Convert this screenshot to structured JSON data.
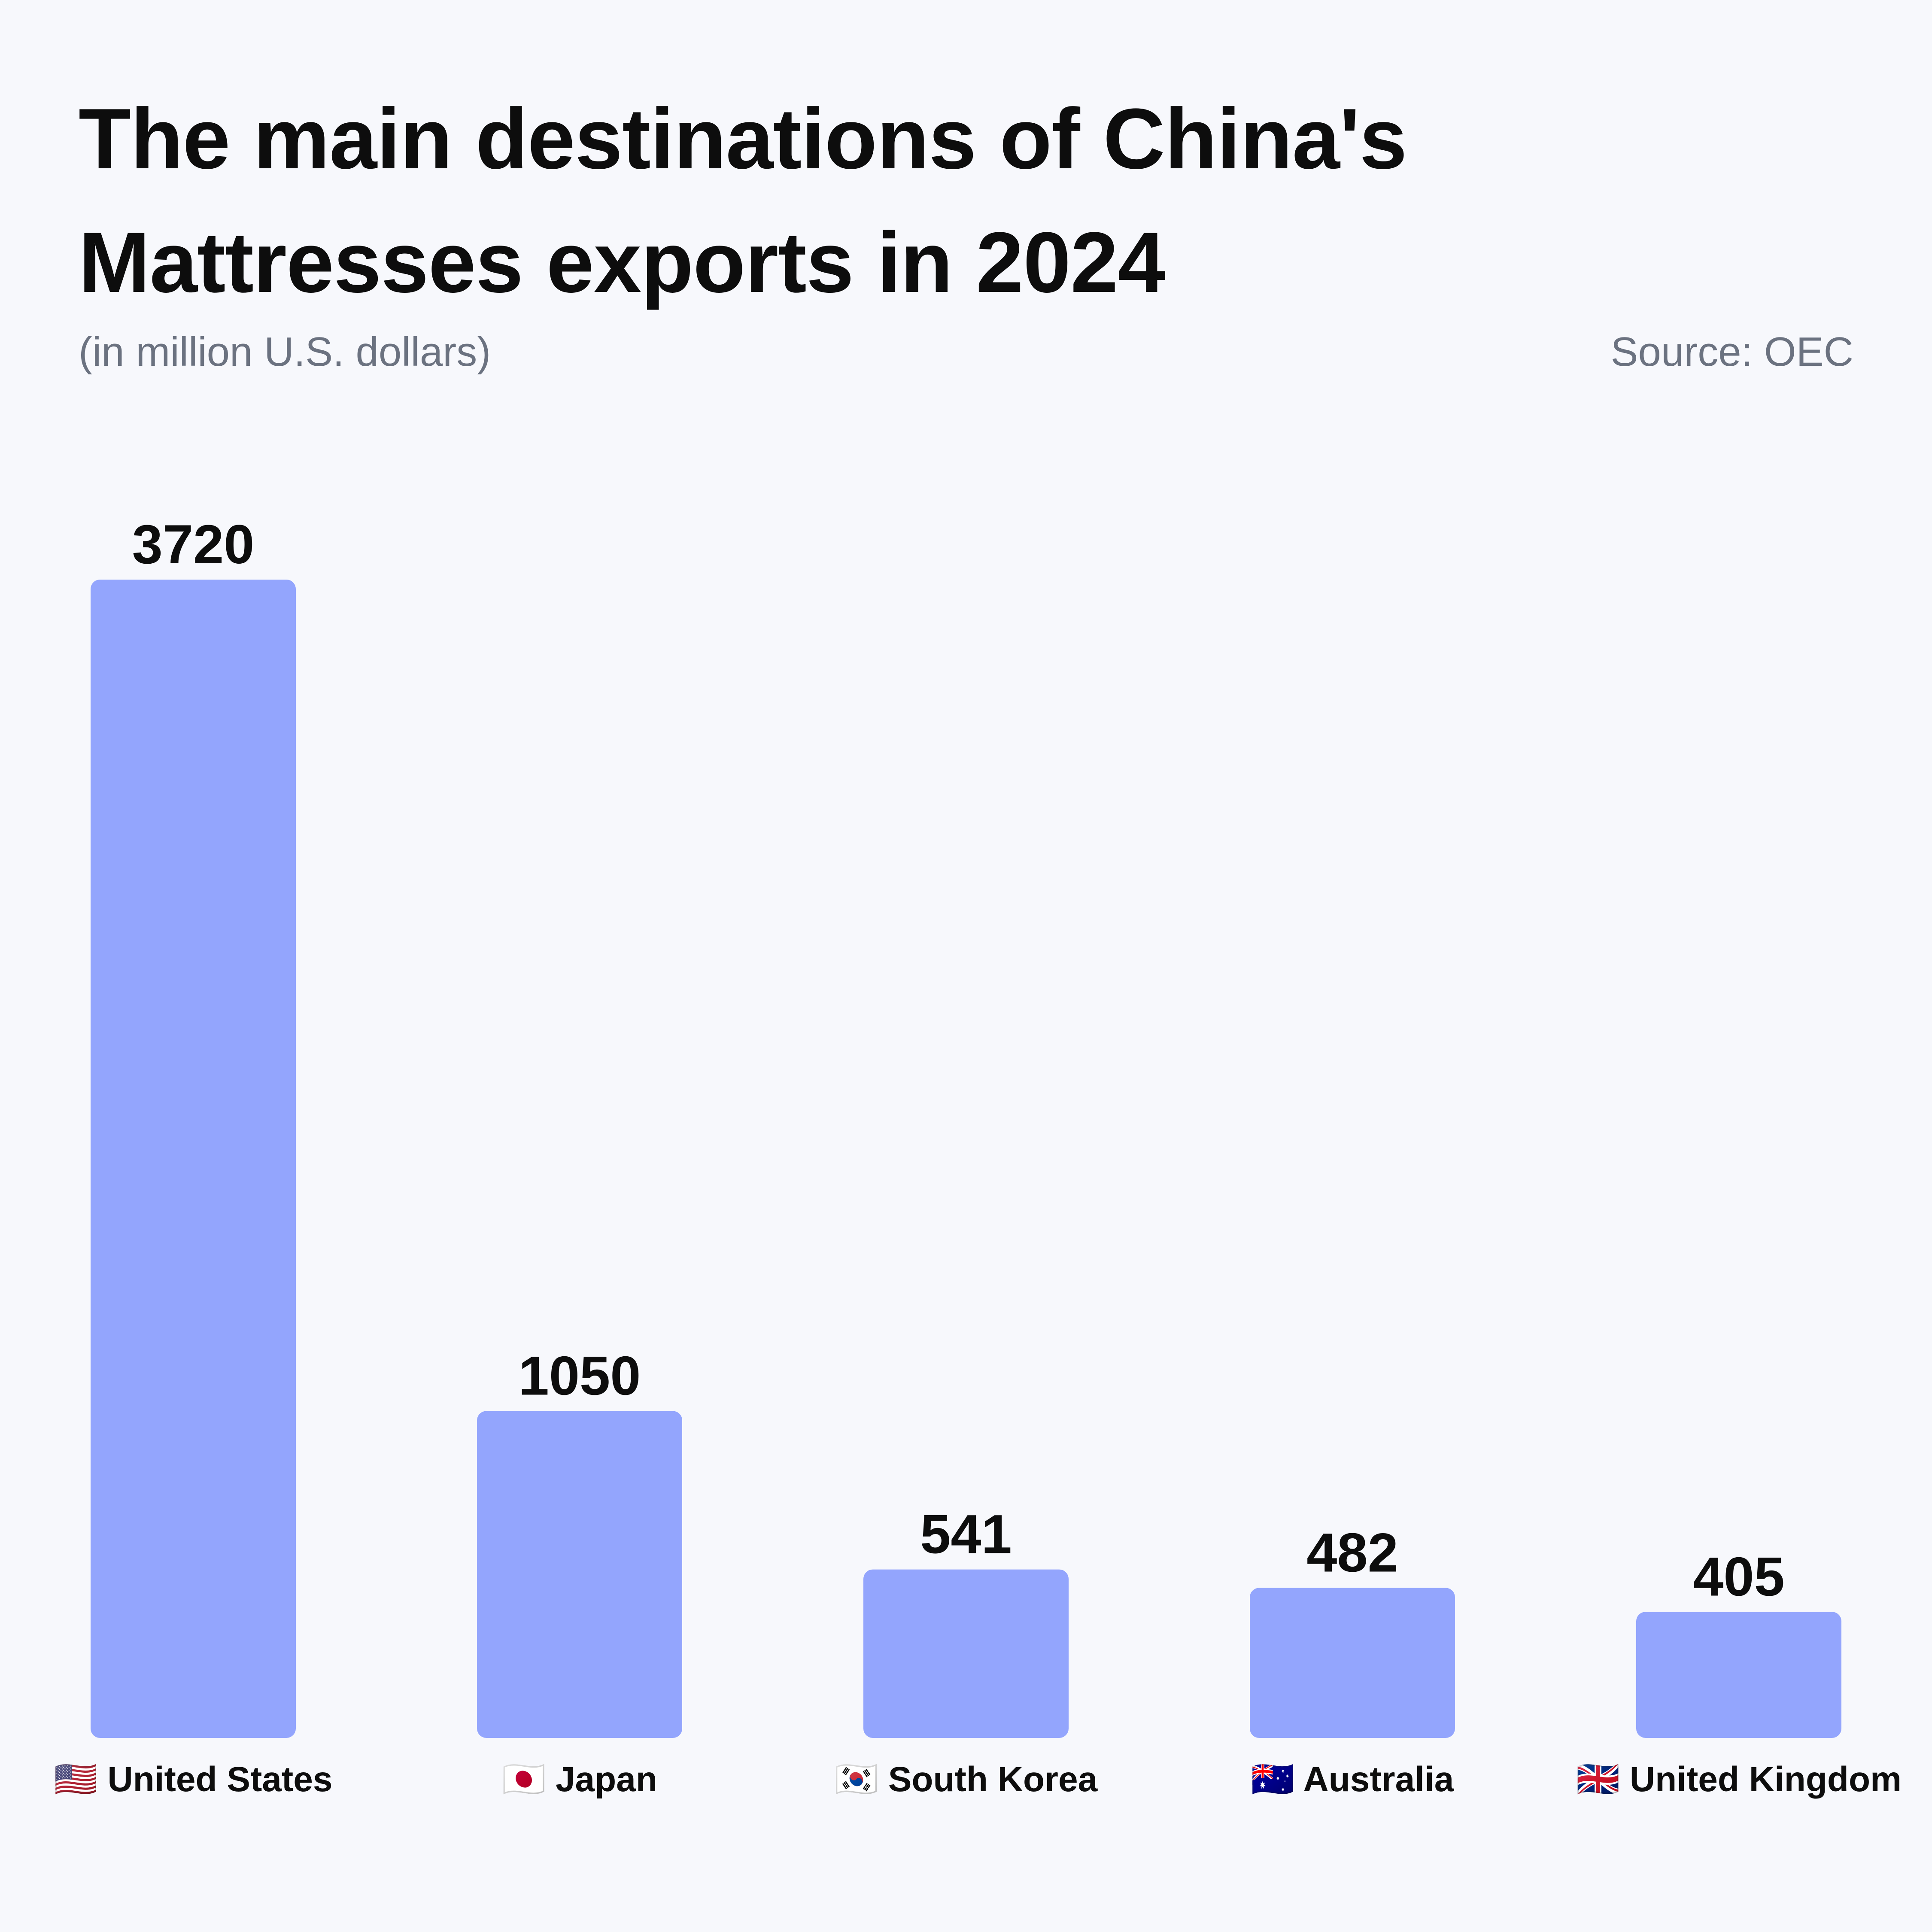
{
  "header": {
    "title": "The main destinations of China's Mattresses exports in 2024",
    "subtitle": "(in million U.S. dollars)",
    "source": "Source: OEC"
  },
  "colors": {
    "background": "#f7f8fc",
    "bar": "#93a5fd",
    "text": "#0d0d0d",
    "muted": "#6b7280"
  },
  "chart_data": {
    "type": "bar",
    "title": "The main destinations of China's Mattresses exports in 2024",
    "ylabel": "",
    "xlabel": "",
    "grid": false,
    "categories": [
      "United States",
      "Japan",
      "South Korea",
      "Australia",
      "United Kingdom"
    ],
    "flags": [
      "🇺🇸",
      "🇯🇵",
      "🇰🇷",
      "🇦🇺",
      "🇬🇧"
    ],
    "values": [
      3720,
      1050,
      541,
      482,
      405
    ],
    "ylim": [
      0,
      3720
    ]
  }
}
